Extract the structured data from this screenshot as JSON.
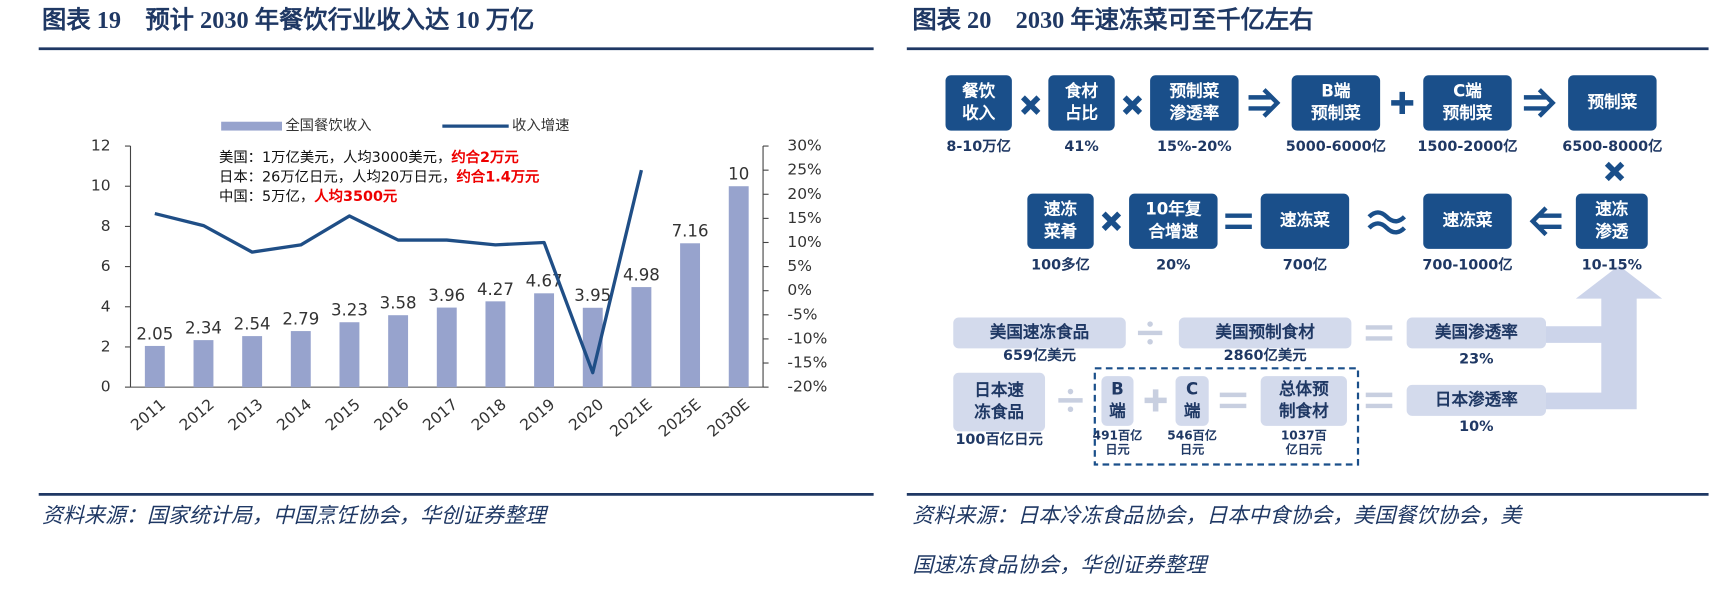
{
  "figure19": {
    "title": "图表 19　预计 2030 年餐饮行业收入达 10 万亿",
    "source": "资料来源：国家统计局，中国烹饪协会，华创证券整理"
  },
  "chart_data": {
    "type": "bar-line",
    "categories": [
      "2011",
      "2012",
      "2013",
      "2014",
      "2015",
      "2016",
      "2017",
      "2018",
      "2019",
      "2020",
      "2021E",
      "2025E",
      "2030E"
    ],
    "series": [
      {
        "name": "全国餐饮收入",
        "color": "#97a3cd",
        "values": [
          2.05,
          2.34,
          2.54,
          2.79,
          3.23,
          3.58,
          3.96,
          4.27,
          4.67,
          3.95,
          4.98,
          7.16,
          10
        ]
      },
      {
        "name": "收入增速",
        "color": "#1f4e86",
        "axis": "y2",
        "values": [
          16,
          13.5,
          8,
          9.5,
          15.5,
          10.5,
          10.5,
          9.5,
          10,
          -17,
          25,
          null,
          null
        ]
      }
    ],
    "ylim": [
      0,
      12
    ],
    "yticks": [
      0,
      2,
      4,
      6,
      8,
      10,
      12
    ],
    "y2lim": [
      -20,
      30
    ],
    "y2ticks": [
      {
        "value": -20,
        "label": "-20%"
      },
      {
        "value": -15,
        "label": "-15%"
      },
      {
        "value": -10,
        "label": "-10%"
      },
      {
        "value": -5,
        "label": "-5%"
      },
      {
        "value": 0,
        "label": "0%"
      },
      {
        "value": 5,
        "label": "5%"
      },
      {
        "value": 10,
        "label": "10%"
      },
      {
        "value": 15,
        "label": "15%"
      },
      {
        "value": 20,
        "label": "20%"
      },
      {
        "value": 25,
        "label": "25%"
      },
      {
        "value": 30,
        "label": "30%"
      }
    ],
    "annotations": [
      {
        "text": "美国：1万亿美元，人均3000美元，",
        "highlight": "约合2万元"
      },
      {
        "text": "日本：26万亿日元，人均20万日元，",
        "highlight": "约合1.4万元"
      },
      {
        "text": "中国：5万亿，",
        "highlight": "人均3500元"
      }
    ]
  },
  "figure20": {
    "title": "图表 20　2030 年速冻菜可至千亿左右",
    "source": [
      "资料来源：日本冷冻食品协会，日本中食协会，美国餐饮协会，美",
      "国速冻食品协会，华创证券整理"
    ],
    "nodes": [
      {
        "lines": [
          "餐饮",
          "收入"
        ],
        "caption": [
          "8-10万亿"
        ]
      },
      {
        "lines": [
          "食材",
          "占比"
        ],
        "caption": [
          "41%"
        ]
      },
      {
        "lines": [
          "预制菜",
          "渗透率"
        ],
        "caption": [
          "15%-20%"
        ]
      },
      {
        "lines": [
          "B端",
          "预制菜"
        ],
        "caption": [
          "5000-6000亿"
        ]
      },
      {
        "lines": [
          "C端",
          "预制菜"
        ],
        "caption": [
          "1500-2000亿"
        ]
      },
      {
        "lines": [
          "预制菜"
        ],
        "caption": [
          "6500-8000亿"
        ]
      },
      {
        "lines": [
          "速冻",
          "菜肴"
        ],
        "caption": [
          "100多亿"
        ]
      },
      {
        "lines": [
          "10年复",
          "合增速"
        ],
        "caption": [
          "20%"
        ]
      },
      {
        "lines": [
          "速冻菜"
        ],
        "caption": [
          "700亿"
        ]
      },
      {
        "lines": [
          "速冻菜"
        ],
        "caption": [
          "700-1000亿"
        ]
      },
      {
        "lines": [
          "速冻",
          "渗透"
        ],
        "caption": [
          "10-15%"
        ]
      },
      {
        "lines": [
          "美国速冻食品"
        ],
        "caption": [
          "659亿美元"
        ]
      },
      {
        "lines": [
          "美国预制食材"
        ],
        "caption": [
          "2860亿美元"
        ]
      },
      {
        "lines": [
          "美国渗透率"
        ],
        "caption": [
          "23%"
        ]
      },
      {
        "lines": [
          "日本速",
          "冻食品"
        ],
        "caption": [
          "100百亿日元"
        ]
      },
      {
        "lines": [
          "B",
          "端"
        ],
        "caption": [
          "491百亿",
          "日元"
        ]
      },
      {
        "lines": [
          "C",
          "端"
        ],
        "caption": [
          "546百亿",
          "日元"
        ]
      },
      {
        "lines": [
          "总体预",
          "制食材"
        ],
        "caption": [
          "1037百",
          "亿日元"
        ]
      },
      {
        "lines": [
          "日本渗透率"
        ],
        "caption": [
          "10%"
        ]
      }
    ]
  }
}
